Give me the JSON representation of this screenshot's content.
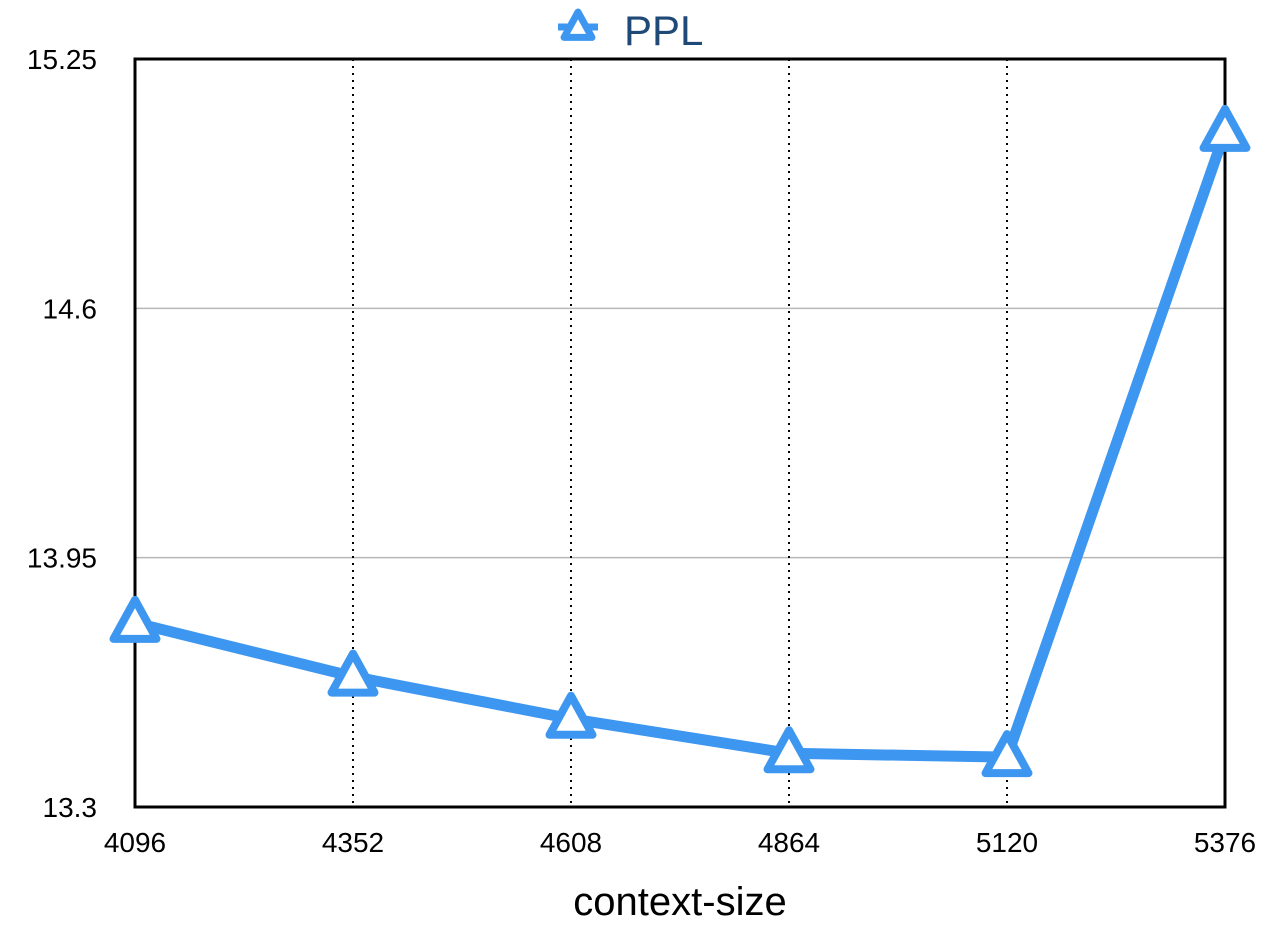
{
  "colors": {
    "series": "#3d96f0",
    "legend_text": "#1f4a78",
    "gridline": "#b8b8b8",
    "frame": "#000000",
    "dotted_grid": "#000000"
  },
  "chart_data": {
    "type": "line",
    "title": "",
    "xlabel": "context-size",
    "ylabel": "",
    "x": [
      4096,
      4352,
      4608,
      4864,
      5120,
      5376
    ],
    "x_tick_labels": [
      "4096",
      "4352",
      "4608",
      "4864",
      "5120",
      "5376"
    ],
    "xlim": [
      4096,
      5376
    ],
    "ylim": [
      13.3,
      15.25
    ],
    "y_ticks": [
      13.3,
      13.95,
      14.6,
      15.25
    ],
    "y_tick_labels": [
      "13.3",
      "13.95",
      "14.6",
      "15.25"
    ],
    "legend": {
      "placement": "top-center",
      "marker": "triangle-icon"
    },
    "grid": {
      "horizontal": "solid",
      "vertical": "dotted"
    },
    "series": [
      {
        "name": "PPL",
        "marker": "triangle",
        "values": [
          13.78,
          13.64,
          13.53,
          13.44,
          13.43,
          15.06
        ]
      }
    ]
  }
}
